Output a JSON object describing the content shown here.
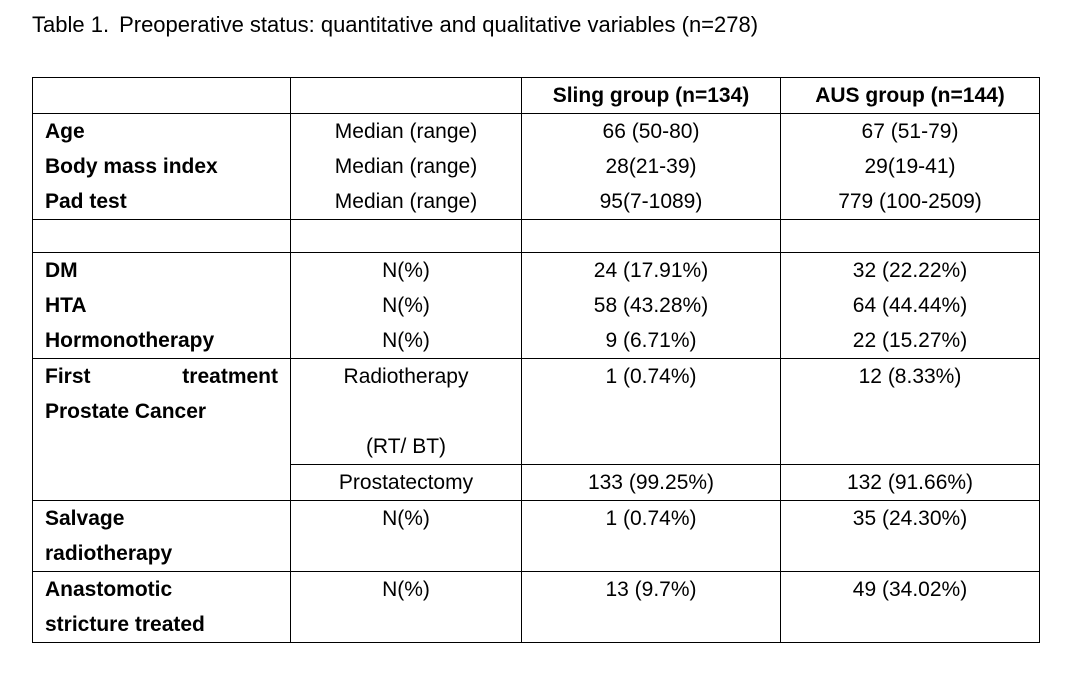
{
  "title": {
    "label": "Table 1.",
    "text": "Preoperative status: quantitative and qualitative variables (n=278)"
  },
  "table": {
    "headers": [
      "",
      "",
      "Sling group (n=134)",
      "AUS group (n=144)"
    ],
    "quant_rows": [
      {
        "variable": "Age",
        "stat": "Median (range)",
        "sling": "66 (50-80)",
        "aus": "67 (51-79)"
      },
      {
        "variable": "Body mass index",
        "stat": "Median (range)",
        "sling": "28(21-39)",
        "aus": "29(19-41)"
      },
      {
        "variable": "Pad test",
        "stat": "Median (range)",
        "sling": "95(7-1089)",
        "aus": "779 (100-2509)"
      }
    ],
    "qual_rows": [
      {
        "variable": "DM",
        "stat": "N(%)",
        "sling": "24 (17.91%)",
        "aus": "32 (22.22%)"
      },
      {
        "variable": "HTA",
        "stat": "N(%)",
        "sling": "58 (43.28%)",
        "aus": "64 (44.44%)"
      },
      {
        "variable": "Hormonotherapy",
        "stat": "N(%)",
        "sling": "9 (6.71%)",
        "aus": "22 (15.27%)"
      }
    ],
    "first_treatment": {
      "variable_word1": "First",
      "variable_word2": "treatment",
      "variable_line2": "Prostate Cancer",
      "radio_label": "Radiotherapy",
      "radio_sub": "(RT/ BT)",
      "radio_sling": "1 (0.74%)",
      "radio_aus": "12 (8.33%)",
      "prost_label": "Prostatectomy",
      "prost_sling": "133 (99.25%)",
      "prost_aus": "132 (91.66%)"
    },
    "salvage": {
      "variable_line1": "Salvage",
      "variable_line2": "radiotherapy",
      "stat": "N(%)",
      "sling": "1  (0.74%)",
      "aus": "35 (24.30%)"
    },
    "anastomotic": {
      "variable_line1": "Anastomotic",
      "variable_line2": "stricture treated",
      "stat": "N(%)",
      "sling": "13 (9.7%)",
      "aus": "49 (34.02%)"
    }
  }
}
